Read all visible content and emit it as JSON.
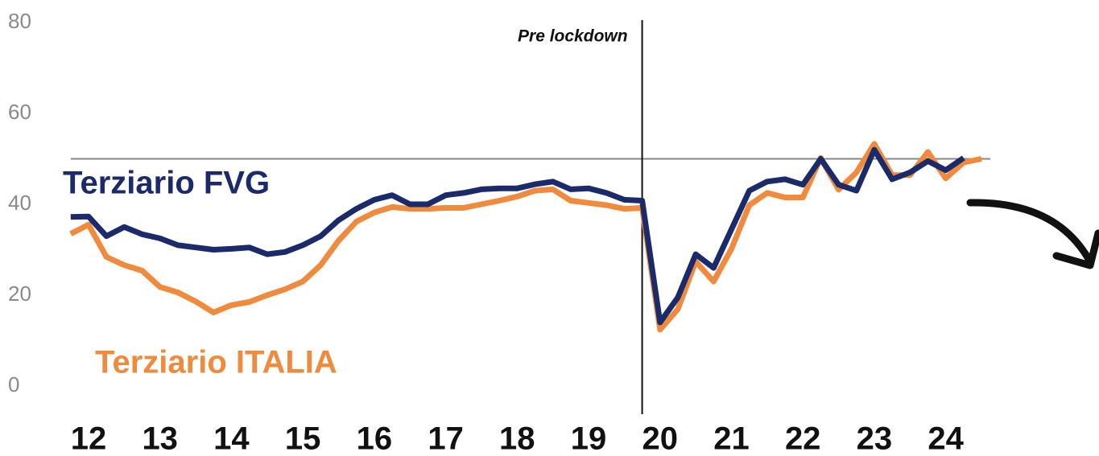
{
  "chart_data": {
    "type": "line",
    "x": [
      11.75,
      12,
      12.25,
      12.5,
      12.75,
      13,
      13.25,
      13.5,
      13.75,
      14,
      14.25,
      14.5,
      14.75,
      15,
      15.25,
      15.5,
      15.75,
      16,
      16.25,
      16.5,
      16.75,
      17,
      17.25,
      17.5,
      17.75,
      18,
      18.25,
      18.5,
      18.75,
      19,
      19.25,
      19.5,
      19.75,
      20,
      20.25,
      20.5,
      20.75,
      21,
      21.25,
      21.5,
      21.75,
      22,
      22.25,
      22.5,
      22.75,
      23,
      23.25,
      23.5,
      23.75,
      24,
      24.25,
      24.5
    ],
    "series": [
      {
        "name": "Terziario FVG",
        "color": "#1b2a6b",
        "values": [
          37.2,
          37.3,
          33,
          35,
          33.4,
          32.5,
          31,
          30.5,
          30,
          30.2,
          30.5,
          29,
          29.5,
          31,
          33,
          36.5,
          39,
          41,
          42,
          40,
          40,
          42,
          42.5,
          43.3,
          43.5,
          43.5,
          44.4,
          45,
          43.3,
          43.5,
          42.5,
          41,
          40.8,
          14,
          19.5,
          29,
          26,
          34.5,
          43,
          45,
          45.5,
          44.3,
          50,
          44.3,
          43,
          52,
          45.5,
          47,
          49.5,
          47.5,
          50.2,
          null
        ]
      },
      {
        "name": "Terziario ITALIA",
        "color": "#f08a3c",
        "values": [
          33.5,
          35.5,
          28.4,
          26.6,
          25.4,
          21.8,
          20.6,
          18.6,
          16.2,
          17.8,
          18.5,
          20,
          21.3,
          23,
          26.6,
          32,
          36.2,
          38.2,
          39.4,
          39,
          39,
          39.2,
          39.2,
          40,
          40.8,
          41.7,
          43,
          43.3,
          40.8,
          40.3,
          39.8,
          39,
          39.2,
          12.4,
          16.9,
          27.4,
          23,
          30.2,
          39.8,
          42.5,
          41.5,
          41.5,
          50.2,
          43.2,
          47,
          53.3,
          46.4,
          46.4,
          51.5,
          45.7,
          49.2,
          50
        ]
      }
    ],
    "xlim": [
      11.75,
      24.5
    ],
    "xticks": [
      12,
      13,
      14,
      15,
      16,
      17,
      18,
      19,
      20,
      21,
      22,
      23,
      24
    ],
    "ylim": [
      0,
      80
    ],
    "yticks": [
      0,
      20,
      40,
      60,
      80
    ],
    "reference_line": 50,
    "event_line": {
      "x": 19.75,
      "label": "Pre lockdown"
    }
  }
}
